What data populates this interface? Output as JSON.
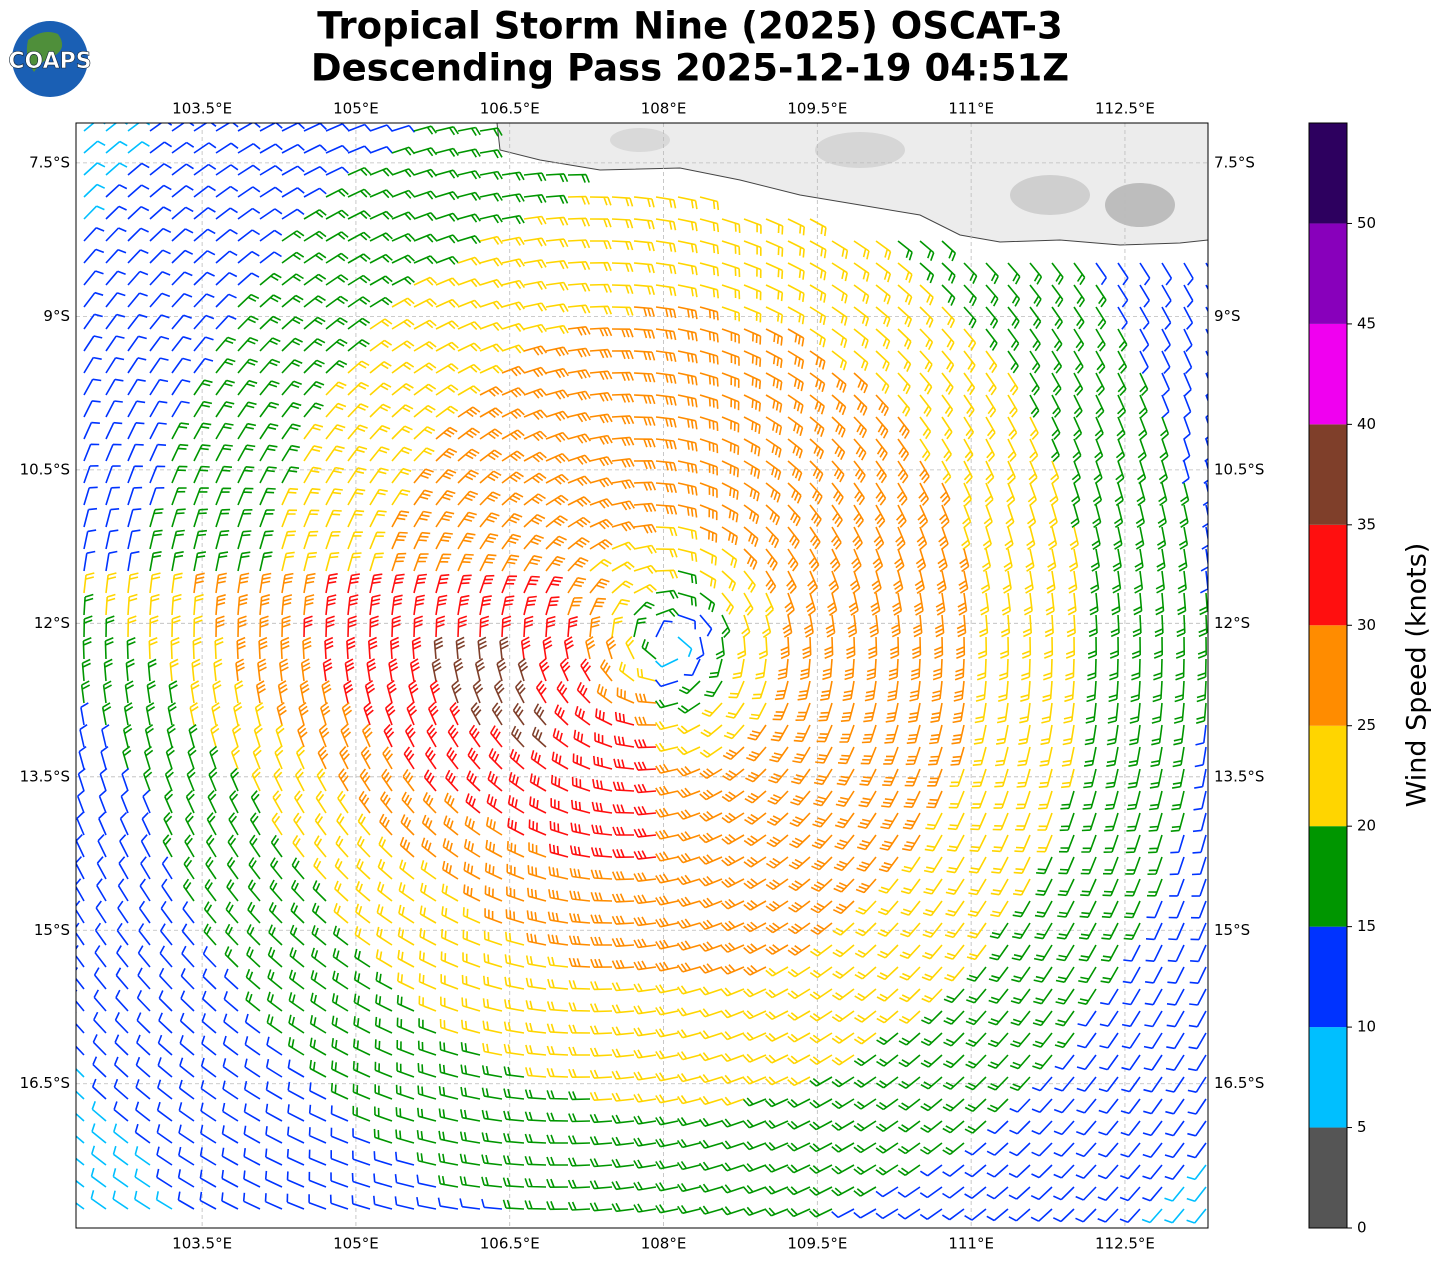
{
  "chart_data": {
    "type": "barbs",
    "title": "Tropical Storm Nine (2025) OSCAT-3",
    "subtitle": "Descending Pass 2025-12-19 04:51Z",
    "logo": "COAPS",
    "xlim": [
      102.27,
      113.31
    ],
    "ylim": [
      -17.91,
      -7.11
    ],
    "xticks": [
      {
        "value": 103.5,
        "label": "103.5°E"
      },
      {
        "value": 105,
        "label": "105°E"
      },
      {
        "value": 106.5,
        "label": "106.5°E"
      },
      {
        "value": 108,
        "label": "108°E"
      },
      {
        "value": 109.5,
        "label": "109.5°E"
      },
      {
        "value": 111,
        "label": "111°E"
      },
      {
        "value": 112.5,
        "label": "112.5°E"
      }
    ],
    "yticks": [
      {
        "value": -7.5,
        "label": "7.5°S"
      },
      {
        "value": -9,
        "label": "9°S"
      },
      {
        "value": -10.5,
        "label": "10.5°S"
      },
      {
        "value": -12,
        "label": "12°S"
      },
      {
        "value": -13.5,
        "label": "13.5°S"
      },
      {
        "value": -15,
        "label": "15°S"
      },
      {
        "value": -16.5,
        "label": "16.5°S"
      }
    ],
    "grid": true,
    "colorbar": {
      "label": "Wind Speed (knots)",
      "lim": [
        0,
        55
      ],
      "ticks": [
        0,
        5,
        10,
        15,
        20,
        25,
        30,
        35,
        40,
        45,
        50
      ],
      "colors": [
        "#555555",
        "#00bfff",
        "#0033ff",
        "#009600",
        "#ffd500",
        "#ff8c00",
        "#ff0f0f",
        "#7f3f2a",
        "#f000f0",
        "#8800bb",
        "#2d005f"
      ]
    }
  }
}
